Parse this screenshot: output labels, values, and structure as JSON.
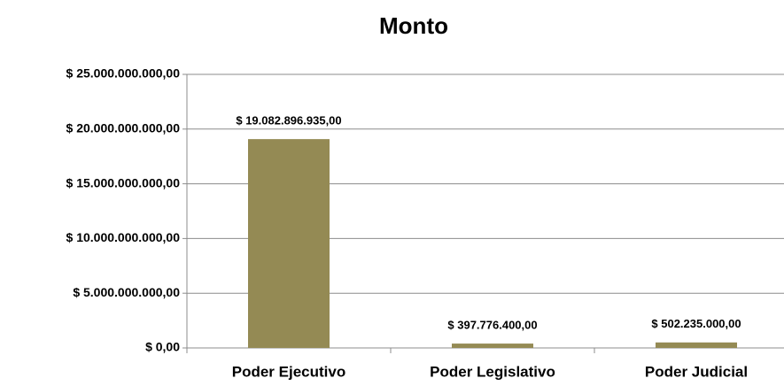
{
  "chart_data": {
    "type": "bar",
    "title": "Monto",
    "categories": [
      "Poder Ejecutivo",
      "Poder Legislativo",
      "Poder Judicial"
    ],
    "values": [
      19082896935,
      397776400,
      502235000
    ],
    "value_labels": [
      "$ 19.082.896.935,00",
      "$ 397.776.400,00",
      "$ 502.235.000,00"
    ],
    "color": "#948a54",
    "ylim": [
      0,
      25000000000
    ],
    "yticks": [
      {
        "value": 0,
        "label": "$ 0,00"
      },
      {
        "value": 5000000000,
        "label": "$ 5.000.000.000,00"
      },
      {
        "value": 10000000000,
        "label": "$ 10.000.000.000,00"
      },
      {
        "value": 15000000000,
        "label": "$ 15.000.000.000,00"
      },
      {
        "value": 20000000000,
        "label": "$ 20.000.000.000,00"
      },
      {
        "value": 25000000000,
        "label": "$ 25.000.000.000,00"
      }
    ],
    "grid": true
  }
}
